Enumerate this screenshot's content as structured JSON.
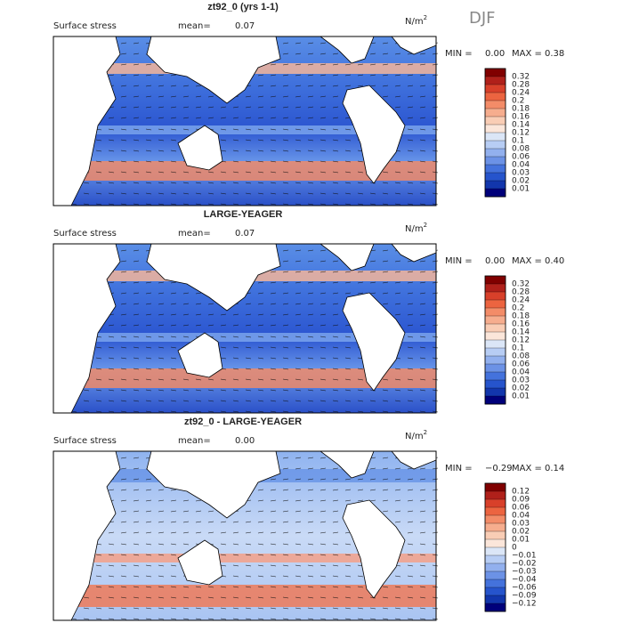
{
  "season": "DJF",
  "panels": [
    {
      "title": "zt92_0 (yrs 1-1)",
      "field": "Surface stress",
      "mean_label": "mean=",
      "mean": "0.07",
      "units": {
        "base": "N/m",
        "exponent": "2"
      },
      "min_label": "MIN =",
      "min": "0.00",
      "max_label": "MAX =",
      "max": "0.38",
      "colorbar": [
        "0.32",
        "0.28",
        "0.24",
        "0.2",
        "0.18",
        "0.16",
        "0.14",
        "0.12",
        "0.1",
        "0.08",
        "0.06",
        "0.04",
        "0.03",
        "0.02",
        "0.01"
      ]
    },
    {
      "title": "LARGE-YEAGER",
      "field": "Surface stress",
      "mean_label": "mean=",
      "mean": "0.07",
      "units": {
        "base": "N/m",
        "exponent": "2"
      },
      "min_label": "MIN =",
      "min": "0.00",
      "max_label": "MAX =",
      "max": "0.40",
      "colorbar": [
        "0.32",
        "0.28",
        "0.24",
        "0.2",
        "0.18",
        "0.16",
        "0.14",
        "0.12",
        "0.1",
        "0.08",
        "0.06",
        "0.04",
        "0.03",
        "0.02",
        "0.01"
      ]
    },
    {
      "title": "zt92_0 - LARGE-YEAGER",
      "field": "Surface stress",
      "mean_label": "mean=",
      "mean": "0.00",
      "units": {
        "base": "N/m",
        "exponent": "2"
      },
      "min_label": "MIN =",
      "min": "−0.29",
      "max_label": "MAX =",
      "max": "0.14",
      "colorbar": [
        "0.12",
        "0.09",
        "0.06",
        "0.04",
        "0.03",
        "0.02",
        "0.01",
        "0",
        "−0.01",
        "−0.02",
        "−0.03",
        "−0.04",
        "−0.06",
        "−0.09",
        "−0.12"
      ]
    }
  ]
}
